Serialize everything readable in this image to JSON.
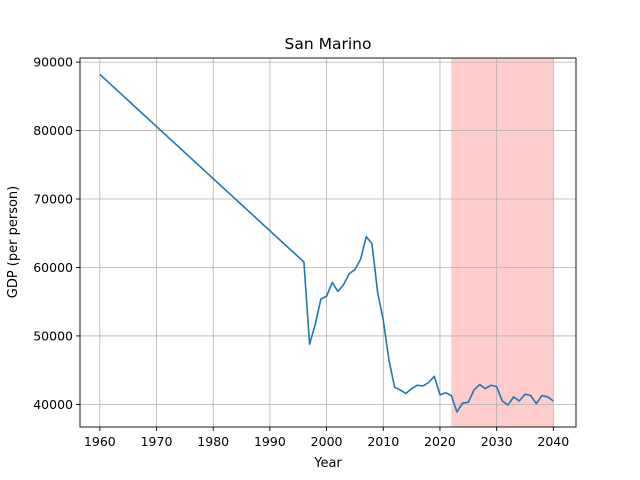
{
  "chart_data": {
    "type": "line",
    "title": "San Marino",
    "xlabel": "Year",
    "ylabel": "GDP (per person)",
    "xlim": [
      1956.5,
      2044
    ],
    "ylim": [
      36700,
      90600
    ],
    "xticks": [
      1960,
      1970,
      1980,
      1990,
      2000,
      2010,
      2020,
      2030,
      2040
    ],
    "yticks": [
      40000,
      50000,
      60000,
      70000,
      80000,
      90000
    ],
    "grid": true,
    "line_color": "#1f77b4",
    "highlight": {
      "x_start": 2022,
      "x_end": 2040,
      "color": "#ff9999"
    },
    "series": [
      {
        "x": [
          1960,
          1996,
          1997,
          1998,
          1999,
          2000,
          2001,
          2002,
          2003,
          2004,
          2005,
          2006,
          2007,
          2008,
          2009,
          2010,
          2011,
          2012,
          2013,
          2014,
          2015,
          2016,
          2017,
          2018,
          2019,
          2020,
          2021,
          2022,
          2023,
          2024,
          2025,
          2026,
          2027,
          2028,
          2029,
          2030,
          2031,
          2032,
          2033,
          2034,
          2035,
          2036,
          2037,
          2038,
          2039,
          2040
        ],
        "values": [
          88200,
          60800,
          48800,
          51700,
          55400,
          55800,
          57800,
          56500,
          57500,
          59100,
          59700,
          61200,
          64500,
          63500,
          56400,
          52300,
          46500,
          42500,
          42100,
          41600,
          42300,
          42800,
          42700,
          43200,
          44100,
          41400,
          41700,
          41300,
          38900,
          40200,
          40300,
          42100,
          42900,
          42300,
          42800,
          42600,
          40500,
          39900,
          41100,
          40500,
          41500,
          41300,
          40100,
          41300,
          41100,
          40500
        ]
      }
    ]
  }
}
